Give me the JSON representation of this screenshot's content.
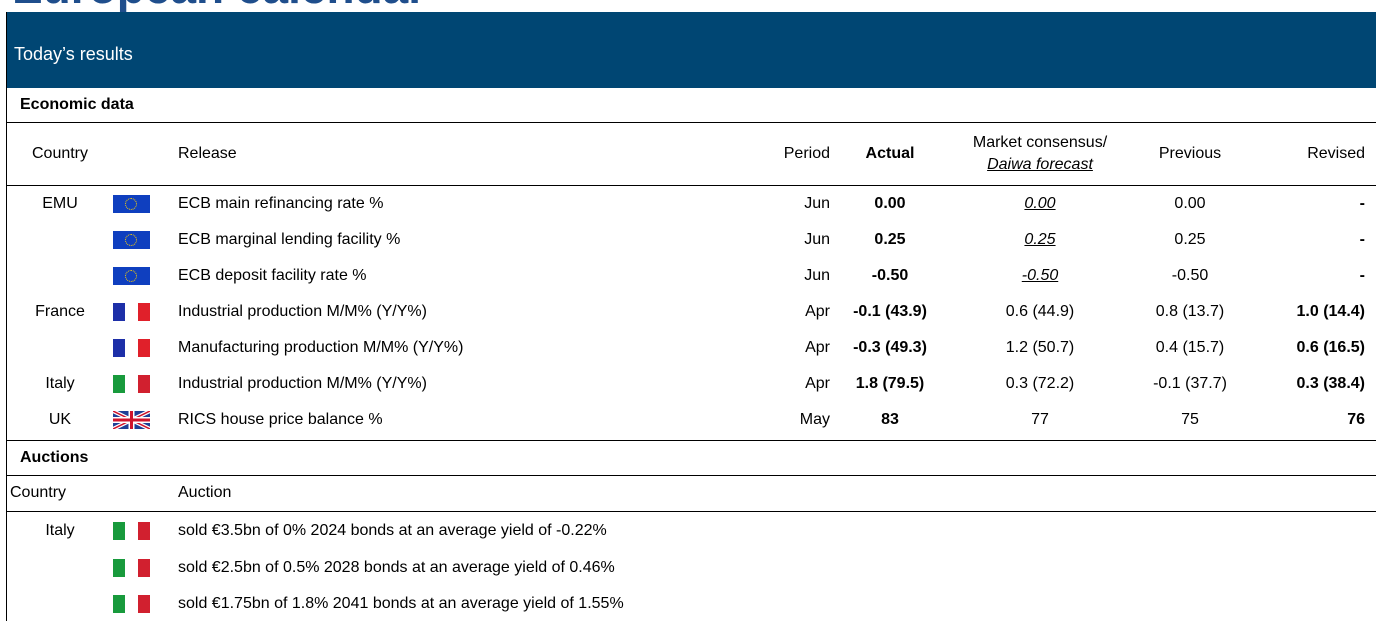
{
  "header": {
    "title": "European calendar",
    "section": "Today’s results"
  },
  "economic_data": {
    "title": "Economic data",
    "columns": {
      "country": "Country",
      "release": "Release",
      "period": "Period",
      "actual": "Actual",
      "consensus": "Market consensus/",
      "forecast": "Daiwa forecast",
      "previous": "Previous",
      "revised": "Revised"
    },
    "rows": [
      [
        "EMU",
        "ECB main refinancing rate %",
        "Jun",
        "0.00",
        "0.00",
        "0.00",
        "-"
      ],
      [
        null,
        "ECB marginal lending facility %",
        "Jun",
        "0.25",
        "0.25",
        "0.25",
        "-"
      ],
      [
        null,
        "ECB deposit facility rate %",
        "Jun",
        "-0.50",
        "-0.50",
        "-0.50",
        "-"
      ],
      [
        "France",
        "Industrial production M/M% (Y/Y%)",
        "Apr",
        "-0.1 (43.9)",
        "0.6 (44.9)",
        "0.8 (13.7)",
        "1.0 (14.4)"
      ],
      [
        null,
        "Manufacturing production M/M% (Y/Y%)",
        "Apr",
        "-0.3 (49.3)",
        "1.2 (50.7)",
        "0.4 (15.7)",
        "0.6 (16.5)"
      ],
      [
        "Italy",
        "Industrial production M/M% (Y/Y%)",
        "Apr",
        "1.8 (79.5)",
        "0.3 (72.2)",
        "-0.1 (37.7)",
        "0.3 (38.4)"
      ],
      [
        "UK",
        "RICS house price balance %",
        "May",
        "83",
        "77",
        "75",
        "76"
      ]
    ]
  },
  "auctions": {
    "title": "Auctions",
    "columns": {
      "country": "Country",
      "auction": "Auction"
    },
    "rows": [
      [
        "Italy",
        "sold €3.5bn of 0% 2024 bonds at an average yield of -0.22%"
      ],
      [
        null,
        "sold €2.5bn of 0.5% 2028 bonds at an average yield of 0.46%"
      ],
      [
        null,
        "sold €1.75bn of 1.8% 2041 bonds at an average yield of 1.55%"
      ]
    ]
  }
}
